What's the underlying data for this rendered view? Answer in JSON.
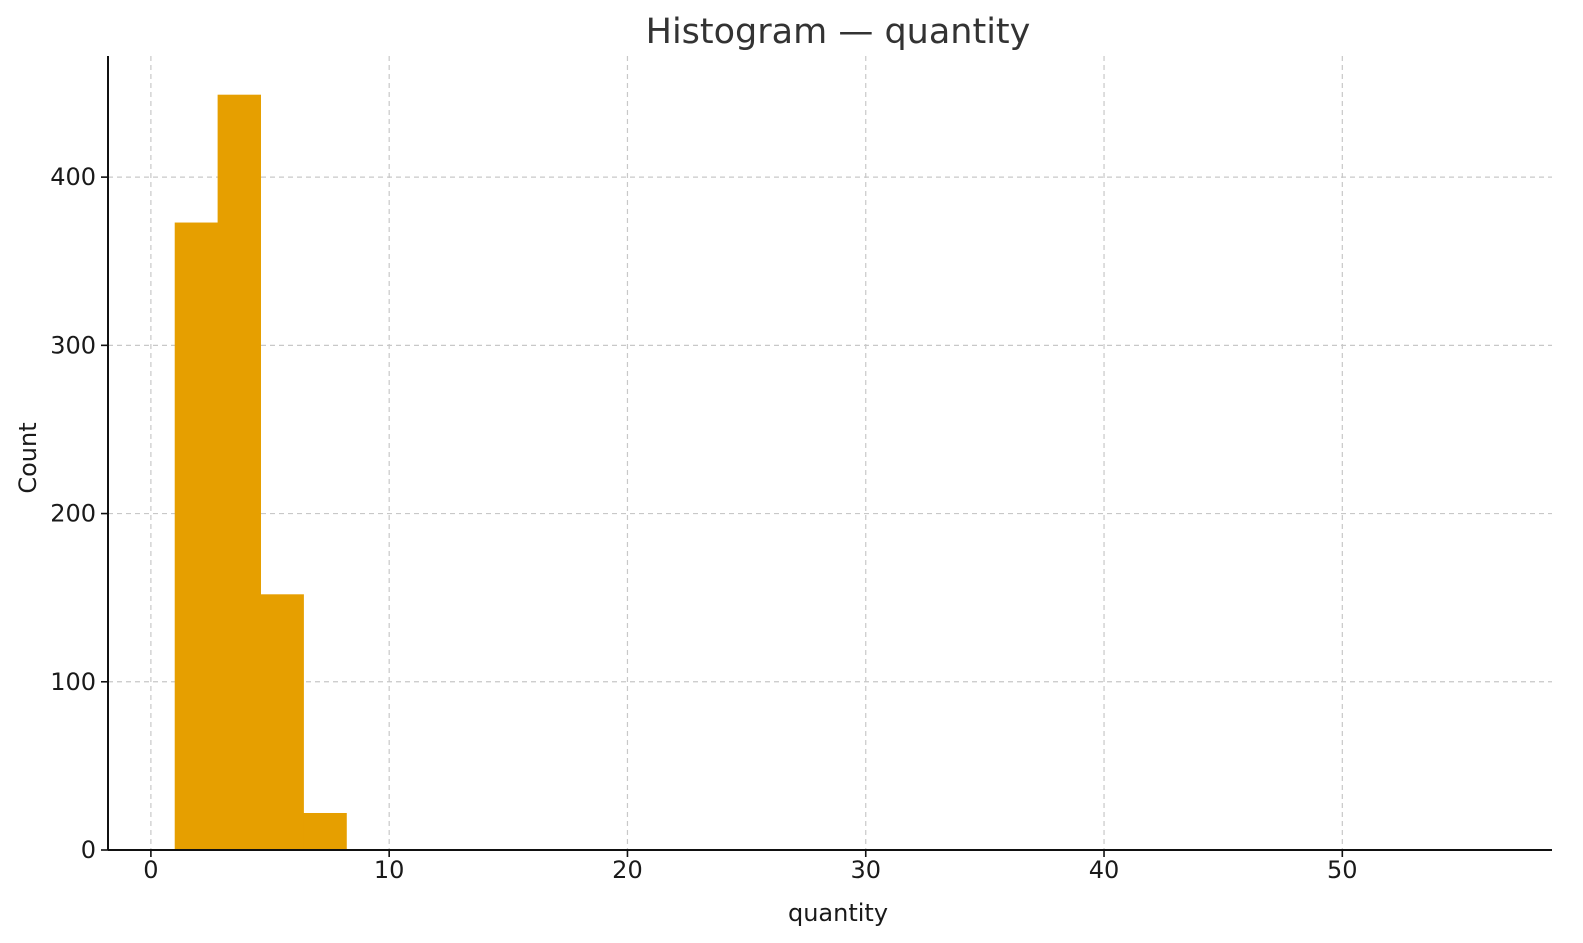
{
  "chart_data": {
    "type": "bar",
    "title": "Histogram — quantity",
    "xlabel": "quantity",
    "ylabel": "Count",
    "xlim": [
      -1.8,
      58.8
    ],
    "ylim": [
      0,
      472
    ],
    "x_ticks": [
      0,
      10,
      20,
      30,
      40,
      50
    ],
    "y_ticks": [
      0,
      100,
      200,
      300,
      400
    ],
    "grid": true,
    "bar_color": "#E69F00",
    "bins": [
      {
        "x0": 1.0,
        "x1": 2.8,
        "count": 373
      },
      {
        "x0": 2.8,
        "x1": 4.6,
        "count": 449
      },
      {
        "x0": 4.6,
        "x1": 6.4,
        "count": 152
      },
      {
        "x0": 6.4,
        "x1": 8.2,
        "count": 22
      }
    ]
  }
}
